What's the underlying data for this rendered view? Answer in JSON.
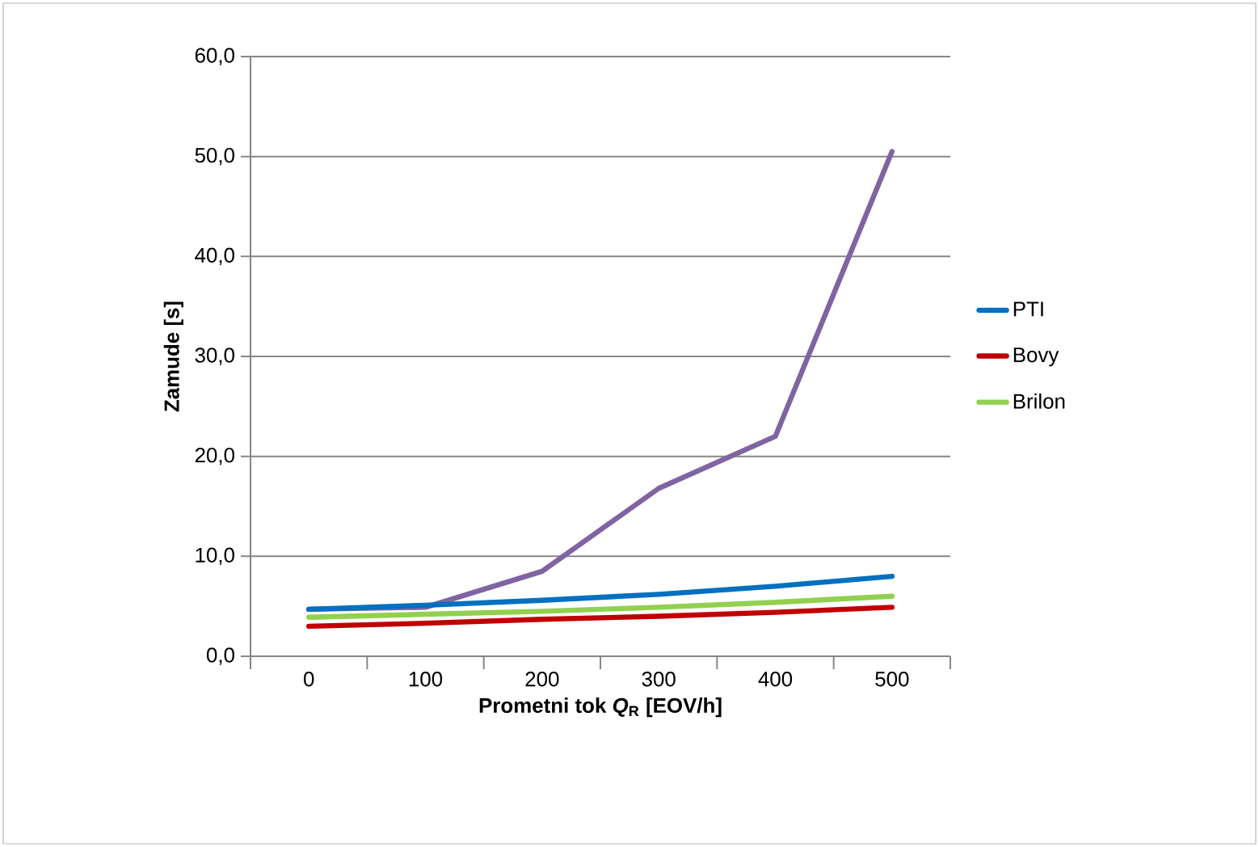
{
  "chart_data": {
    "type": "line",
    "xlabel": "Prometni tok *Q*$_{R}$ [EOV/h]",
    "ylabel": "Zamude [s]",
    "categories": [
      "0",
      "100",
      "200",
      "300",
      "400",
      "500"
    ],
    "series": [
      {
        "color": "#8064a2",
        "values": [
          4.7,
          4.9,
          8.5,
          16.8,
          22.0,
          50.5
        ]
      },
      {
        "name": "PTI",
        "color": "#0070c0",
        "values": [
          4.7,
          5.1,
          5.6,
          6.2,
          7.0,
          8.0
        ]
      },
      {
        "name": "Bovy",
        "color": "#c00000",
        "values": [
          3.0,
          3.3,
          3.7,
          4.0,
          4.4,
          4.9
        ]
      },
      {
        "name": "Brilon",
        "color": "#92d050",
        "values": [
          3.9,
          4.2,
          4.5,
          4.9,
          5.4,
          6.0
        ]
      }
    ],
    "ylim": [
      0,
      60
    ],
    "yticks": [
      {
        "value": 0,
        "label": "0,0"
      },
      {
        "value": 10,
        "label": "10,0"
      },
      {
        "value": 20,
        "label": "20,0"
      },
      {
        "value": 30,
        "label": "30,0"
      },
      {
        "value": 40,
        "label": "40,0"
      },
      {
        "value": 50,
        "label": "50,0"
      },
      {
        "value": 60,
        "label": "60,0"
      }
    ],
    "grid": "y",
    "legend": "right",
    "marker": "none",
    "line_style": "solid"
  }
}
